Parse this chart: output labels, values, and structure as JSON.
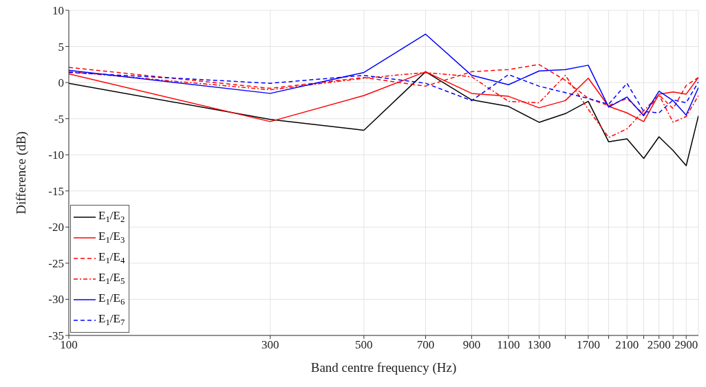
{
  "chart_data": {
    "type": "line",
    "xlabel": "Band centre frequency (Hz)",
    "ylabel": "Difference (dB)",
    "x": [
      100,
      300,
      500,
      700,
      900,
      1100,
      1300,
      1500,
      1700,
      1900,
      2100,
      2300,
      2500,
      2700,
      2900,
      3100
    ],
    "xlim": [
      100,
      3100
    ],
    "xticks": [
      100,
      300,
      500,
      700,
      900,
      1100,
      1300,
      {
        "value": 1500,
        "label": null
      },
      1700,
      {
        "value": 1900,
        "label": null
      },
      2100,
      {
        "value": 2300,
        "label": null
      },
      2500,
      {
        "value": 2700,
        "label": null
      },
      2900
    ],
    "ylim": [
      -35,
      10
    ],
    "yticks": [
      -35,
      -30,
      -25,
      -20,
      -15,
      -10,
      -5,
      0,
      5,
      10
    ],
    "grid": true,
    "log": "x",
    "legend": "bottom left",
    "marker": "none",
    "series": [
      {
        "name": "E$_{1}$/E$_{2}$",
        "color": "#000000",
        "line_style": "solid",
        "values": [
          -0.1,
          -5.1,
          -6.6,
          1.5,
          -2.4,
          -3.3,
          -5.5,
          -4.3,
          -2.6,
          -8.2,
          -7.8,
          -10.5,
          -7.5,
          -9.4,
          -11.5,
          -4.6
        ]
      },
      {
        "name": "E$_{1}$/E$_{3}$",
        "color": "#ff0000",
        "line_style": "solid",
        "values": [
          1.2,
          -5.4,
          -1.8,
          1.5,
          -1.5,
          -1.9,
          -3.5,
          -2.5,
          0.6,
          -3.3,
          -4.2,
          -5.4,
          -1.6,
          -1.3,
          -1.6,
          0.7
        ]
      },
      {
        "name": "E$_{1}$/E$_{4}$",
        "color": "#ff0000",
        "line_style": "dashed",
        "values": [
          2.1,
          -0.8,
          0.7,
          -0.5,
          1.5,
          1.8,
          2.5,
          0.3,
          -2.2,
          -3.2,
          -2.2,
          -4.4,
          -1.7,
          -3.6,
          -0.4,
          0.7
        ]
      },
      {
        "name": "E$_{1}$/E$_{5}$",
        "color": "#ff0000",
        "line_style": "dashdot",
        "values": [
          1.5,
          -1.0,
          0.6,
          1.4,
          0.8,
          -2.6,
          -2.8,
          1.0,
          -3.7,
          -7.6,
          -6.4,
          -3.9,
          -1.7,
          -5.5,
          -4.7,
          -1.8
        ]
      },
      {
        "name": "E$_{1}$/E$_{6}$",
        "color": "#0000ff",
        "line_style": "solid",
        "values": [
          1.7,
          -1.5,
          1.4,
          6.7,
          1.0,
          -0.3,
          1.6,
          1.8,
          2.4,
          -3.4,
          -2.0,
          -4.6,
          -1.2,
          -2.5,
          -4.5,
          -0.7
        ]
      },
      {
        "name": "E$_{1}$/E$_{7}$",
        "color": "#0000ff",
        "line_style": "dashed",
        "values": [
          1.4,
          -0.1,
          1.0,
          -0.1,
          -2.5,
          1.1,
          -0.5,
          -1.4,
          -2.2,
          -3.0,
          -0.1,
          -4.0,
          -4.2,
          -2.4,
          -2.8,
          0.1
        ]
      }
    ]
  }
}
